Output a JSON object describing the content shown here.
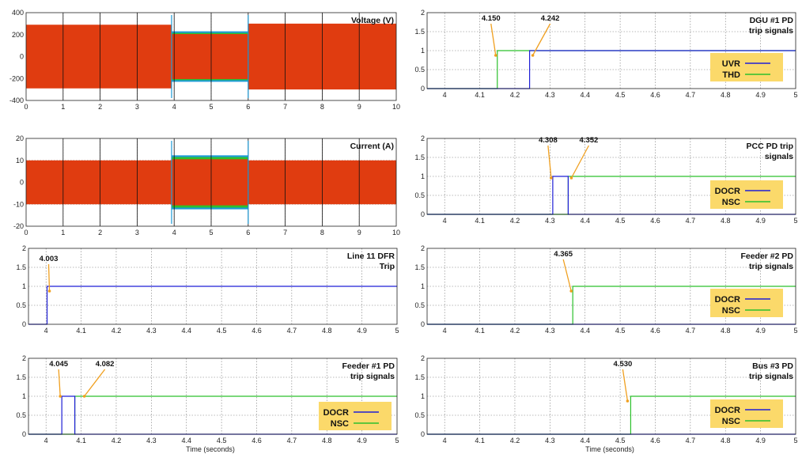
{
  "colors": {
    "blue": "#1f1fd6",
    "green": "#2cc02c",
    "red": "#e03c10",
    "cyan": "#1e9bd8",
    "arrow": "#f0a020",
    "legend_bg": "#fbd96a"
  },
  "chart_data": [
    {
      "id": "voltage",
      "type": "line",
      "title_lines": [
        "Voltage (V)"
      ],
      "xlim": [
        0,
        10
      ],
      "ylim": [
        -400,
        400
      ],
      "xticks": [
        0,
        1,
        2,
        3,
        4,
        5,
        6,
        7,
        8,
        9,
        10
      ],
      "yticks": [
        -400,
        -200,
        0,
        200,
        400
      ],
      "waveform": {
        "segments": [
          {
            "x": [
              0,
              3.93
            ],
            "red_amp": 290,
            "blue_amp": 0,
            "green_amp": 0
          },
          {
            "x": [
              3.93,
              6.0
            ],
            "red_amp": 205,
            "blue_amp": 230,
            "green_amp": 215
          },
          {
            "x": [
              6.0,
              10
            ],
            "red_amp": 300,
            "blue_amp": 0,
            "green_amp": 0
          }
        ]
      },
      "annotations": [],
      "legend": null
    },
    {
      "id": "current",
      "type": "line",
      "title_lines": [
        "Current (A)"
      ],
      "xlim": [
        0,
        10
      ],
      "ylim": [
        -20,
        20
      ],
      "xticks": [
        0,
        1,
        2,
        3,
        4,
        5,
        6,
        7,
        8,
        9,
        10
      ],
      "yticks": [
        -20,
        -10,
        0,
        10,
        20
      ],
      "waveform": {
        "segments": [
          {
            "x": [
              0,
              3.93
            ],
            "red_amp": 10,
            "blue_amp": 0,
            "green_amp": 0
          },
          {
            "x": [
              3.93,
              6.0
            ],
            "red_amp": 10.5,
            "blue_amp": 12.3,
            "green_amp": 11.5
          },
          {
            "x": [
              6.0,
              10
            ],
            "red_amp": 10,
            "blue_amp": 0,
            "green_amp": 0
          }
        ]
      },
      "annotations": [],
      "legend": null
    },
    {
      "id": "line11",
      "type": "line",
      "title_lines": [
        "Line 11 DFR",
        "Trip"
      ],
      "xlim": [
        3.95,
        5
      ],
      "ylim": [
        0,
        2
      ],
      "xticks": [
        4,
        4.1,
        4.2,
        4.3,
        4.4,
        4.5,
        4.6,
        4.7,
        4.8,
        4.9,
        5
      ],
      "yticks": [
        0,
        0.5,
        1,
        1.5,
        2
      ],
      "series": [
        {
          "name": "",
          "color": "blue",
          "x": [
            3.95,
            4.003,
            4.003,
            5
          ],
          "y": [
            0,
            0,
            1,
            1
          ]
        }
      ],
      "annotations": [
        {
          "text": "4.003",
          "x": 4.003
        }
      ],
      "legend": null
    },
    {
      "id": "feeder1",
      "type": "line",
      "title_lines": [
        "Feeder #1 PD",
        "trip signals"
      ],
      "xlim": [
        3.95,
        5
      ],
      "ylim": [
        0,
        2
      ],
      "xticks": [
        4,
        4.1,
        4.2,
        4.3,
        4.4,
        4.5,
        4.6,
        4.7,
        4.8,
        4.9,
        5
      ],
      "yticks": [
        0,
        0.5,
        1,
        1.5,
        2
      ],
      "series": [
        {
          "name": "DOCR",
          "color": "blue",
          "x": [
            3.95,
            4.045,
            4.045,
            4.082,
            4.082,
            5
          ],
          "y": [
            0,
            0,
            1,
            1,
            0,
            0
          ]
        },
        {
          "name": "NSC",
          "color": "green",
          "x": [
            3.95,
            4.082,
            4.082,
            5
          ],
          "y": [
            0,
            0,
            1,
            1
          ]
        }
      ],
      "annotations": [
        {
          "text": "4.045",
          "x": 4.045
        },
        {
          "text": "4.082",
          "x": 4.082
        }
      ],
      "legend": {
        "entries": [
          "DOCR",
          "NSC"
        ]
      }
    },
    {
      "id": "dgu1",
      "type": "line",
      "title_lines": [
        "DGU #1 PD",
        "trip signals"
      ],
      "xlim": [
        3.95,
        5
      ],
      "ylim": [
        0,
        2
      ],
      "xticks": [
        4,
        4.1,
        4.2,
        4.3,
        4.4,
        4.5,
        4.6,
        4.7,
        4.8,
        4.9,
        5
      ],
      "yticks": [
        0,
        0.5,
        1,
        1.5,
        2
      ],
      "series": [
        {
          "name": "UVR",
          "color": "blue",
          "x": [
            3.95,
            4.242,
            4.242,
            5
          ],
          "y": [
            0,
            0,
            1,
            1
          ]
        },
        {
          "name": "THD",
          "color": "green",
          "x": [
            3.95,
            4.15,
            4.15,
            5
          ],
          "y": [
            0,
            0,
            1,
            1
          ]
        }
      ],
      "annotations": [
        {
          "text": "4.150",
          "x": 4.15
        },
        {
          "text": "4.242",
          "x": 4.242
        }
      ],
      "legend": {
        "entries": [
          "UVR",
          "THD"
        ]
      }
    },
    {
      "id": "pcc",
      "type": "line",
      "title_lines": [
        "PCC PD trip",
        "signals"
      ],
      "xlim": [
        3.95,
        5
      ],
      "ylim": [
        0,
        2
      ],
      "xticks": [
        4,
        4.1,
        4.2,
        4.3,
        4.4,
        4.5,
        4.6,
        4.7,
        4.8,
        4.9,
        5
      ],
      "yticks": [
        0,
        0.5,
        1,
        1.5,
        2
      ],
      "series": [
        {
          "name": "DOCR",
          "color": "blue",
          "x": [
            3.95,
            4.308,
            4.308,
            4.352,
            4.352,
            5
          ],
          "y": [
            0,
            0,
            1,
            1,
            0,
            0
          ]
        },
        {
          "name": "NSC",
          "color": "green",
          "x": [
            3.95,
            4.352,
            4.352,
            5
          ],
          "y": [
            0,
            0,
            1,
            1
          ]
        }
      ],
      "annotations": [
        {
          "text": "4.308",
          "x": 4.308
        },
        {
          "text": "4.352",
          "x": 4.352
        }
      ],
      "legend": {
        "entries": [
          "DOCR",
          "NSC"
        ]
      }
    },
    {
      "id": "feeder2",
      "type": "line",
      "title_lines": [
        "Feeder #2 PD",
        "trip signals"
      ],
      "xlim": [
        3.95,
        5
      ],
      "ylim": [
        0,
        2
      ],
      "xticks": [
        4,
        4.1,
        4.2,
        4.3,
        4.4,
        4.5,
        4.6,
        4.7,
        4.8,
        4.9,
        5
      ],
      "yticks": [
        0,
        0.5,
        1,
        1.5,
        2
      ],
      "series": [
        {
          "name": "DOCR",
          "color": "blue",
          "x": [
            3.95,
            5
          ],
          "y": [
            0,
            0
          ]
        },
        {
          "name": "NSC",
          "color": "green",
          "x": [
            3.95,
            4.365,
            4.365,
            5
          ],
          "y": [
            0,
            0,
            1,
            1
          ]
        }
      ],
      "annotations": [
        {
          "text": "4.365",
          "x": 4.365
        }
      ],
      "legend": {
        "entries": [
          "DOCR",
          "NSC"
        ]
      }
    },
    {
      "id": "bus3",
      "type": "line",
      "title_lines": [
        "Bus #3 PD",
        "trip signals"
      ],
      "xlim": [
        3.95,
        5
      ],
      "ylim": [
        0,
        2
      ],
      "xticks": [
        4,
        4.1,
        4.2,
        4.3,
        4.4,
        4.5,
        4.6,
        4.7,
        4.8,
        4.9,
        5
      ],
      "yticks": [
        0,
        0.5,
        1,
        1.5,
        2
      ],
      "series": [
        {
          "name": "DOCR",
          "color": "blue",
          "x": [
            3.95,
            5
          ],
          "y": [
            0,
            0
          ]
        },
        {
          "name": "NSC",
          "color": "green",
          "x": [
            3.95,
            4.53,
            4.53,
            5
          ],
          "y": [
            0,
            0,
            1,
            1
          ]
        }
      ],
      "annotations": [
        {
          "text": "4.530",
          "x": 4.53
        }
      ],
      "legend": {
        "entries": [
          "DOCR",
          "NSC"
        ]
      }
    }
  ],
  "xlabels": {
    "left": "Time (seconds)",
    "right": "Time (seconds)"
  }
}
